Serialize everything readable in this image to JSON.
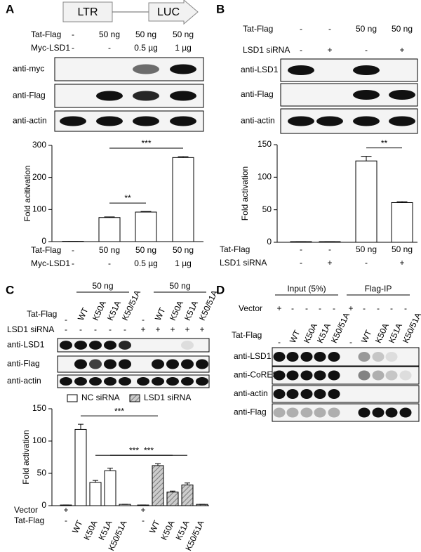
{
  "panel_labels": [
    "A",
    "B",
    "C",
    "D"
  ],
  "panel_a": {
    "construct": [
      "LTR",
      "LUC"
    ],
    "blots": [
      "anti-myc",
      "anti-Flag",
      "anti-actin"
    ]
  },
  "panel_b": {
    "blots": [
      "anti-LSD1",
      "anti-Flag",
      "anti-actin"
    ]
  },
  "panel_c": {
    "group_labels": [
      "50 ng",
      "50 ng"
    ],
    "rows": [
      {
        "label": "LSD1 siRNA",
        "lanes": [
          "-",
          "-",
          "-",
          "-",
          "-",
          "+",
          "+",
          "+",
          "+",
          "+"
        ]
      }
    ],
    "blots": [
      "anti-LSD1",
      "anti-Flag",
      "anti-actin"
    ]
  },
  "panel_d": {
    "group_labels": [
      "Input (5%)",
      "Flag-IP"
    ],
    "rows": [
      {
        "label": "Vector",
        "lanes": [
          "+",
          "-",
          "-",
          "-",
          "-",
          "+",
          "-",
          "-",
          "-",
          "-"
        ]
      },
      {
        "label": "Tat-Flag",
        "lanes": [
          "-",
          "WT",
          "K50A",
          "K51A",
          "K50/51A",
          "-",
          "WT",
          "K50A",
          "K51A",
          "K50/51A"
        ]
      }
    ],
    "blots": [
      "anti-LSD1",
      "anti-CoREST",
      "anti-actin",
      "anti-Flag"
    ]
  },
  "chart_data": [
    {
      "type": "bar",
      "ylabel": "Fold acitivation",
      "category_rows": [
        {
          "label": "Tat-Flag",
          "lanes": [
            "-",
            "50 ng",
            "50 ng",
            "50 ng"
          ]
        },
        {
          "label": "Myc-LSD1",
          "lanes": [
            "-",
            "-",
            "0.5 µg",
            "1 µg"
          ]
        }
      ],
      "series": [
        {
          "color": "#ffffff",
          "values": [
            1,
            75,
            92,
            262
          ],
          "errors": [
            0,
            2,
            2,
            3
          ]
        }
      ],
      "ylim": [
        0,
        300
      ],
      "yticks": [
        0,
        100,
        200,
        300
      ],
      "annotations": [
        {
          "text": "**",
          "between": [
            1,
            2
          ]
        },
        {
          "text": "***",
          "between": [
            1,
            3
          ]
        }
      ]
    },
    {
      "type": "bar",
      "ylabel": "Fold activation",
      "category_rows": [
        {
          "label": "Tat-Flag",
          "lanes": [
            "-",
            "-",
            "50 ng",
            "50 ng"
          ]
        },
        {
          "label": "LSD1 siRNA",
          "lanes": [
            "-",
            "+",
            "-",
            "+"
          ]
        }
      ],
      "series": [
        {
          "color": "#ffffff",
          "values": [
            1,
            1,
            125,
            61
          ],
          "errors": [
            0,
            0,
            7,
            1.5
          ]
        }
      ],
      "ylim": [
        0,
        150
      ],
      "yticks": [
        0,
        50,
        100,
        150
      ],
      "annotations": [
        {
          "text": "**",
          "between": [
            2,
            3
          ]
        }
      ]
    },
    {
      "type": "bar",
      "ylabel": "Fold activation",
      "category_rows": [
        {
          "label": "Vector",
          "lanes": [
            "+",
            null,
            null,
            null,
            null,
            "+",
            null,
            null,
            null,
            null
          ]
        },
        {
          "label": "Tat-Flag",
          "lanes": [
            "-",
            "WT",
            "K50A",
            "K51A",
            "K50/51A",
            "-",
            "WT",
            "K50A",
            "K51A",
            "K50/51A"
          ]
        }
      ],
      "series": [
        {
          "name": "NC siRNA",
          "color": "#ffffff",
          "values": [
            1,
            118,
            36,
            54,
            2,
            null,
            null,
            null,
            null,
            null
          ],
          "errors": [
            0,
            8,
            3,
            4,
            0,
            null,
            null,
            null,
            null,
            null
          ]
        },
        {
          "name": "LSD1 siRNA",
          "color": "#cccccc",
          "hatch": true,
          "values": [
            null,
            null,
            null,
            null,
            null,
            1,
            62,
            21,
            32,
            2
          ],
          "errors": [
            null,
            null,
            null,
            null,
            null,
            0,
            3,
            1.5,
            3,
            0
          ]
        }
      ],
      "ylim": [
        0,
        150
      ],
      "yticks": [
        0,
        50,
        100,
        150
      ],
      "annotations": [
        {
          "text": "***",
          "between": [
            1,
            6
          ]
        },
        {
          "text": "***",
          "between": [
            2,
            7
          ]
        },
        {
          "text": "***",
          "between": [
            3,
            8
          ]
        }
      ]
    }
  ]
}
